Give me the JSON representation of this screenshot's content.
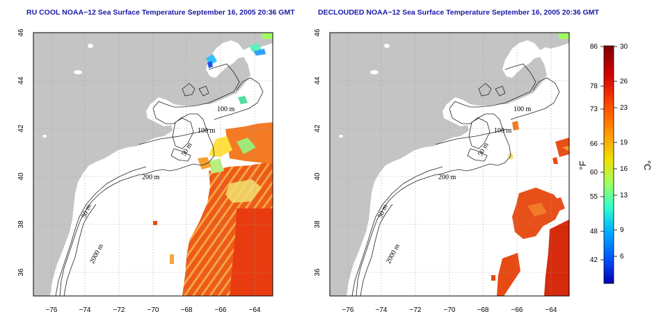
{
  "titles": {
    "left": "RU COOL NOAA−12 Sea Surface Temperature September 16, 2005 20:36 GMT",
    "right": "DECLOUDED NOAA−12 Sea Surface Temperature September 16, 2005 20:36 GMT"
  },
  "map": {
    "lon_ticks": [
      "−76",
      "−74",
      "−72",
      "−70",
      "−68",
      "−66",
      "−64"
    ],
    "lat_ticks": [
      "46",
      "44",
      "42",
      "40",
      "38",
      "36"
    ],
    "lon_values": [
      -76,
      -74,
      -72,
      -70,
      -68,
      -66,
      -64
    ],
    "lat_values": [
      46,
      44,
      42,
      40,
      38,
      36
    ],
    "lon_range": [
      -77.2,
      -63.1
    ],
    "lat_range": [
      35,
      46
    ],
    "contour_labels": [
      "100 m",
      "100 m",
      "50 m",
      "200 m",
      "50 m",
      "2000 m"
    ],
    "colors": {
      "land": "#c4c4c4",
      "grid": "#9a9a9a",
      "warm": "#e84a14",
      "hot": "#d62a0c"
    }
  },
  "colorbar": {
    "fahrenheit_label": "°F",
    "celsius_label": "°C",
    "fahrenheit_ticks": [
      "86",
      "78",
      "73",
      "66",
      "60",
      "55",
      "48",
      "42"
    ],
    "celsius_ticks": [
      "30",
      "26",
      "23",
      "19",
      "16",
      "13",
      "9",
      "6"
    ],
    "range_c": [
      3,
      30
    ],
    "gradient": [
      "#800000",
      "#d20000",
      "#ff4a00",
      "#ffa000",
      "#f0e000",
      "#a0ff60",
      "#30ffd0",
      "#00b0ff",
      "#0050ff",
      "#0000b0"
    ]
  }
}
